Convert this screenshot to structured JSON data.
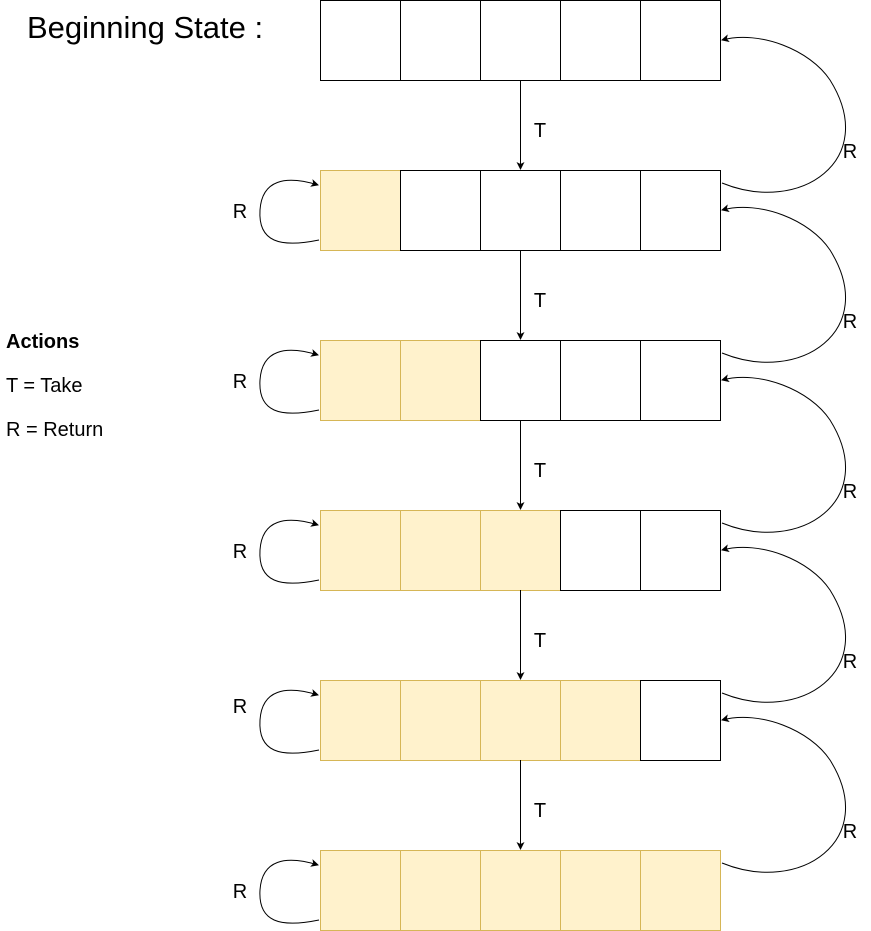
{
  "title": "Beginning State :",
  "legend": {
    "heading": "Actions",
    "items": [
      "T = Take",
      "R = Return"
    ]
  },
  "diagram": {
    "cells_per_row": 5,
    "filled_counts": [
      0,
      1,
      2,
      3,
      4,
      5
    ],
    "down_arrow_label": "T",
    "self_loop_label": "R",
    "return_arrow_label": "R",
    "colors": {
      "filled_fill": "#fff2cc",
      "filled_stroke": "#d6b656",
      "empty_fill": "#ffffff",
      "empty_stroke": "#000000",
      "arrow": "#000000"
    }
  }
}
